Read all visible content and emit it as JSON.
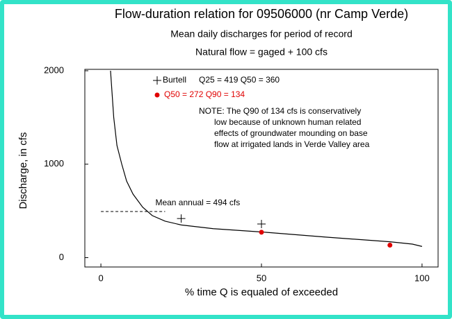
{
  "chart_data": {
    "type": "line",
    "title": "Flow-duration relation for 09506000 (nr Camp Verde)",
    "subtitles": [
      "Mean daily discharges for period of record",
      "Natural flow = gaged + 100 cfs"
    ],
    "x_label": "% time Q is equaled of exceeded",
    "y_label": "Discharge, in cfs",
    "xlim": [
      -5,
      105
    ],
    "xticks": [
      0,
      50,
      100
    ],
    "ylim": [
      -100,
      2015
    ],
    "yticks": [
      0,
      1000,
      2000
    ],
    "series": [
      {
        "color": "#000000",
        "marker": "none",
        "x": [
          3,
          4,
          5,
          6.5,
          8,
          10,
          13,
          16,
          20,
          25,
          35,
          50,
          70,
          90,
          97,
          100
        ],
        "values": [
          2000,
          1500,
          1200,
          1000,
          820,
          680,
          540,
          450,
          390,
          350,
          310,
          275,
          220,
          170,
          145,
          120
        ]
      },
      {
        "name": "Burtell",
        "color": "#000000",
        "marker": "plus",
        "x": [
          25,
          50
        ],
        "values": [
          419,
          360
        ]
      },
      {
        "color": "#e00000",
        "marker": "dot",
        "x": [
          50,
          90
        ],
        "values": [
          272,
          134
        ]
      }
    ],
    "legend_texts": [
      "Q25 = 419  Q50 = 360",
      "Q50 = 272   Q90 = 134"
    ],
    "reference_line": {
      "value": 494,
      "x": [
        0,
        20
      ],
      "label": "Mean annual = 494 cfs"
    },
    "note": [
      "NOTE: The Q90 of 134 cfs is conservatively",
      "low because of unknown human related",
      "effects of groundwater mounding on base",
      "flow at irrigated lands in Verde Valley area"
    ]
  }
}
